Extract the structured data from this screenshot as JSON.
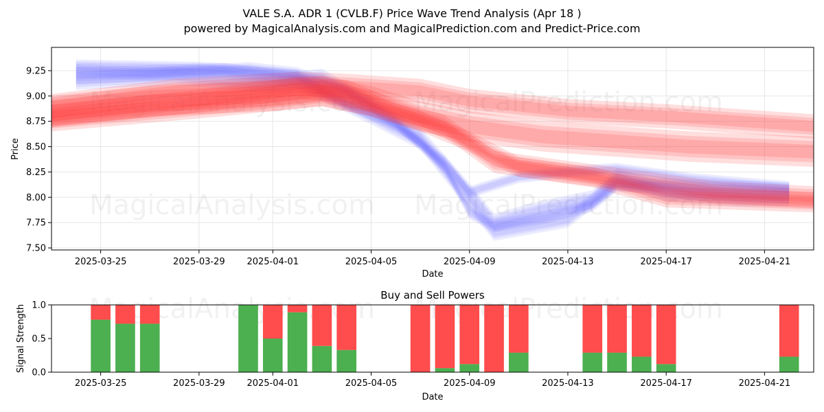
{
  "title_line1": "VALE S.A. ADR 1 (CVLB.F) Price Wave Trend Analysis (Apr 18 )",
  "title_line2": "powered by MagicalAnalysis.com and MagicalPrediction.com and Predict-Price.com",
  "watermarks": [
    "MagicalAnalysis.com",
    "MagicalPrediction.com",
    "MagicalAnalysis.com",
    "MagicalPrediction.com",
    "MagicalAnalysis.com",
    "MagicalPrediction.com"
  ],
  "colors": {
    "blue": "#6e6eff",
    "red": "#ff3333",
    "buy": "#4caf50",
    "sell": "#ff4c4c"
  },
  "chart_data": [
    {
      "type": "area",
      "name": "price-wave-trend",
      "xlabel": "Date",
      "ylabel": "Price",
      "ylim": [
        7.48,
        9.48
      ],
      "xlim": [
        "2025-03-23",
        "2025-04-23"
      ],
      "x_ticks": [
        "2025-03-25",
        "2025-03-29",
        "2025-04-01",
        "2025-04-05",
        "2025-04-09",
        "2025-04-13",
        "2025-04-17",
        "2025-04-21"
      ],
      "y_ticks": [
        7.5,
        7.75,
        8.0,
        8.25,
        8.5,
        8.75,
        9.0,
        9.25
      ],
      "y_tick_labels": [
        "7.50",
        "7.75",
        "8.00",
        "8.25",
        "8.50",
        "8.75",
        "9.00",
        "9.25"
      ],
      "series": [
        {
          "color": "blue",
          "x": [
            "2025-03-24",
            "2025-03-27",
            "2025-03-31",
            "2025-04-02",
            "2025-04-04",
            "2025-04-06",
            "2025-04-08",
            "2025-04-09",
            "2025-04-10",
            "2025-04-12",
            "2025-04-14",
            "2025-04-15",
            "2025-04-17",
            "2025-04-20",
            "2025-04-22"
          ],
          "y": [
            9.25,
            9.22,
            9.27,
            9.22,
            9.05,
            8.75,
            8.3,
            7.85,
            7.72,
            7.8,
            7.92,
            8.12,
            8.12,
            8.1,
            8.08
          ],
          "width": 0.13
        },
        {
          "color": "blue",
          "x": [
            "2025-03-24",
            "2025-03-28",
            "2025-04-01",
            "2025-04-03",
            "2025-04-05",
            "2025-04-07",
            "2025-04-09",
            "2025-04-10",
            "2025-04-12",
            "2025-04-14",
            "2025-04-15",
            "2025-04-17",
            "2025-04-20",
            "2025-04-22"
          ],
          "y": [
            9.15,
            9.2,
            9.12,
            9.18,
            8.9,
            8.6,
            8.05,
            7.75,
            7.88,
            7.98,
            8.2,
            8.05,
            8.0,
            8.0
          ],
          "width": 0.18
        },
        {
          "color": "blue",
          "x": [
            "2025-03-24",
            "2025-03-29",
            "2025-04-02",
            "2025-04-04",
            "2025-04-06",
            "2025-04-08",
            "2025-04-09",
            "2025-04-11",
            "2025-04-13",
            "2025-04-15",
            "2025-04-18",
            "2025-04-22"
          ],
          "y": [
            9.3,
            9.28,
            9.2,
            8.92,
            8.72,
            8.35,
            8.05,
            8.2,
            8.25,
            8.28,
            8.18,
            8.1
          ],
          "width": 0.12
        },
        {
          "color": "blue",
          "x": [
            "2025-03-24",
            "2025-03-30",
            "2025-04-02",
            "2025-04-05",
            "2025-04-07",
            "2025-04-09",
            "2025-04-10",
            "2025-04-13",
            "2025-04-15",
            "2025-04-18",
            "2025-04-22"
          ],
          "y": [
            9.2,
            9.25,
            9.15,
            8.8,
            8.55,
            7.95,
            7.65,
            7.78,
            8.15,
            8.05,
            8.02
          ],
          "width": 0.16
        },
        {
          "color": "red",
          "x": [
            "2025-03-23",
            "2025-03-27",
            "2025-04-01",
            "2025-04-03",
            "2025-04-05",
            "2025-04-07",
            "2025-04-09",
            "2025-04-12",
            "2025-04-15",
            "2025-04-18",
            "2025-04-23"
          ],
          "y": [
            8.85,
            8.95,
            9.0,
            9.05,
            8.95,
            8.8,
            8.7,
            8.6,
            8.55,
            8.5,
            8.45
          ],
          "width": 0.3
        },
        {
          "color": "red",
          "x": [
            "2025-03-23",
            "2025-03-28",
            "2025-04-02",
            "2025-04-04",
            "2025-04-07",
            "2025-04-09",
            "2025-04-13",
            "2025-04-17",
            "2025-04-23"
          ],
          "y": [
            8.9,
            9.05,
            9.12,
            9.1,
            9.05,
            8.95,
            8.85,
            8.8,
            8.7
          ],
          "width": 0.24
        },
        {
          "color": "red",
          "x": [
            "2025-03-23",
            "2025-03-29",
            "2025-04-02",
            "2025-04-04",
            "2025-04-06",
            "2025-04-08",
            "2025-04-10",
            "2025-04-13",
            "2025-04-16",
            "2025-04-19",
            "2025-04-23"
          ],
          "y": [
            8.8,
            8.95,
            9.08,
            9.05,
            8.85,
            8.7,
            8.35,
            8.25,
            8.15,
            8.05,
            8.0
          ],
          "width": 0.22
        },
        {
          "color": "red",
          "x": [
            "2025-03-23",
            "2025-03-30",
            "2025-04-03",
            "2025-04-05",
            "2025-04-07",
            "2025-04-09",
            "2025-04-11",
            "2025-04-14",
            "2025-04-17",
            "2025-04-23"
          ],
          "y": [
            8.75,
            8.9,
            9.0,
            8.9,
            8.75,
            8.55,
            8.3,
            8.2,
            8.0,
            7.95
          ],
          "width": 0.2
        }
      ]
    },
    {
      "type": "bar",
      "name": "buy-and-sell-powers",
      "title": "Buy and Sell Powers",
      "xlabel": "Date",
      "ylabel": "Signal Strength",
      "ylim": [
        0,
        1.0
      ],
      "xlim": [
        "2025-03-23",
        "2025-04-23"
      ],
      "x_ticks": [
        "2025-03-25",
        "2025-03-29",
        "2025-04-01",
        "2025-04-05",
        "2025-04-09",
        "2025-04-13",
        "2025-04-17",
        "2025-04-21"
      ],
      "y_ticks": [
        0,
        0.5,
        1.0
      ],
      "y_tick_labels": [
        "0.0",
        "0.5",
        "1.0"
      ],
      "categories": [
        "2025-03-25",
        "2025-03-26",
        "2025-03-27",
        "2025-03-31",
        "2025-04-01",
        "2025-04-02",
        "2025-04-03",
        "2025-04-04",
        "2025-04-07",
        "2025-04-08",
        "2025-04-09",
        "2025-04-10",
        "2025-04-11",
        "2025-04-14",
        "2025-04-15",
        "2025-04-16",
        "2025-04-17",
        "2025-04-22"
      ],
      "series": [
        {
          "name": "Buy",
          "values": [
            0.78,
            0.72,
            0.72,
            1.0,
            0.5,
            0.89,
            0.39,
            0.33,
            0.0,
            0.06,
            0.12,
            0.0,
            0.29,
            0.29,
            0.29,
            0.23,
            0.12,
            0.23
          ]
        },
        {
          "name": "Sell",
          "values": [
            0.22,
            0.28,
            0.28,
            0.0,
            0.5,
            0.11,
            0.61,
            0.67,
            1.0,
            0.94,
            0.88,
            1.0,
            0.71,
            0.71,
            0.71,
            0.77,
            0.88,
            0.77
          ]
        }
      ]
    }
  ]
}
